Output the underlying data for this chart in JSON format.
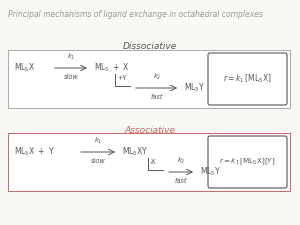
{
  "title": "Principal mechanisms of ligand exchange in octahedral complexes",
  "title_fontsize": 5.5,
  "title_color": "#999999",
  "title_style": "italic",
  "bg_color": "#f8f8f5",
  "box1_edge_color": "#aaaaaa",
  "box2_edge_color": "#cc6666",
  "text_color": "#555555",
  "red_color": "#cc6666",
  "dissociative_label": "Dissociative",
  "associative_label": "Associative",
  "label_fontsize": 6.5,
  "label_style": "italic",
  "eq_fontsize": 5.5,
  "fs": 5.5,
  "fs_small": 4.8
}
